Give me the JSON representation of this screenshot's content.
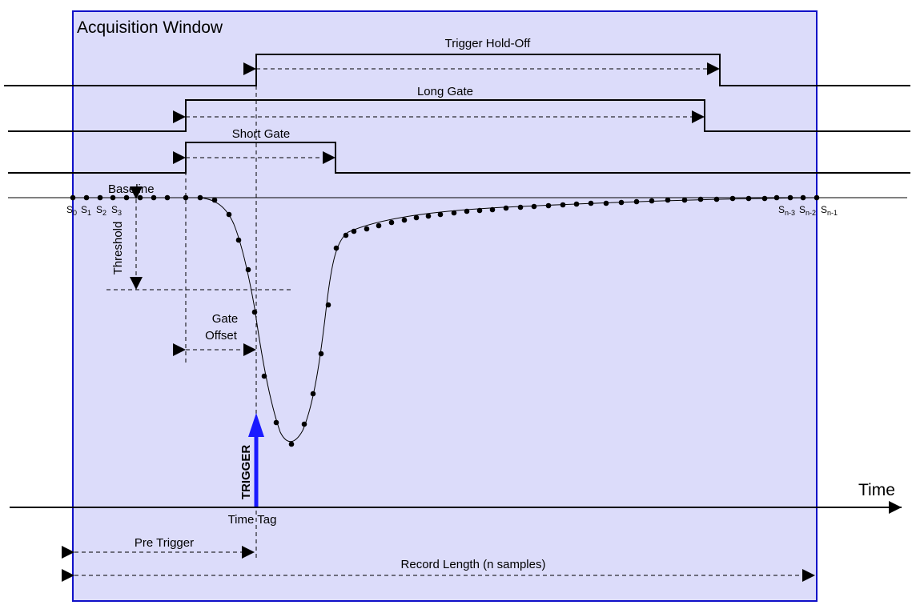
{
  "window": {
    "title": "Acquisition Window",
    "fill": "#dcdcfa",
    "border": "#1010c8"
  },
  "gates": {
    "trigger_holdoff": "Trigger Hold-Off",
    "long_gate": "Long Gate",
    "short_gate": "Short Gate"
  },
  "labels": {
    "baseline": "Baseline",
    "threshold": "Threshold",
    "gate_offset_1": "Gate",
    "gate_offset_2": "Offset",
    "trigger": "TRIGGER",
    "time_tag": "Time Tag",
    "time": "Time",
    "pre_trigger": "Pre Trigger",
    "record_length": "Record Length (n samples)"
  },
  "samples": {
    "first": [
      {
        "base": "S",
        "sub": "0"
      },
      {
        "base": "S",
        "sub": "1"
      },
      {
        "base": "S",
        "sub": "2"
      },
      {
        "base": "S",
        "sub": "3"
      }
    ],
    "last": [
      {
        "base": "S",
        "sub": "n-3"
      },
      {
        "base": "S",
        "sub": "n-2"
      },
      {
        "base": "S",
        "sub": "n-1"
      }
    ]
  },
  "colors": {
    "trigger_arrow": "#1a1aff",
    "lines": "#000000"
  },
  "icons": {
    "trigger_arrow": "up-arrow-icon"
  }
}
